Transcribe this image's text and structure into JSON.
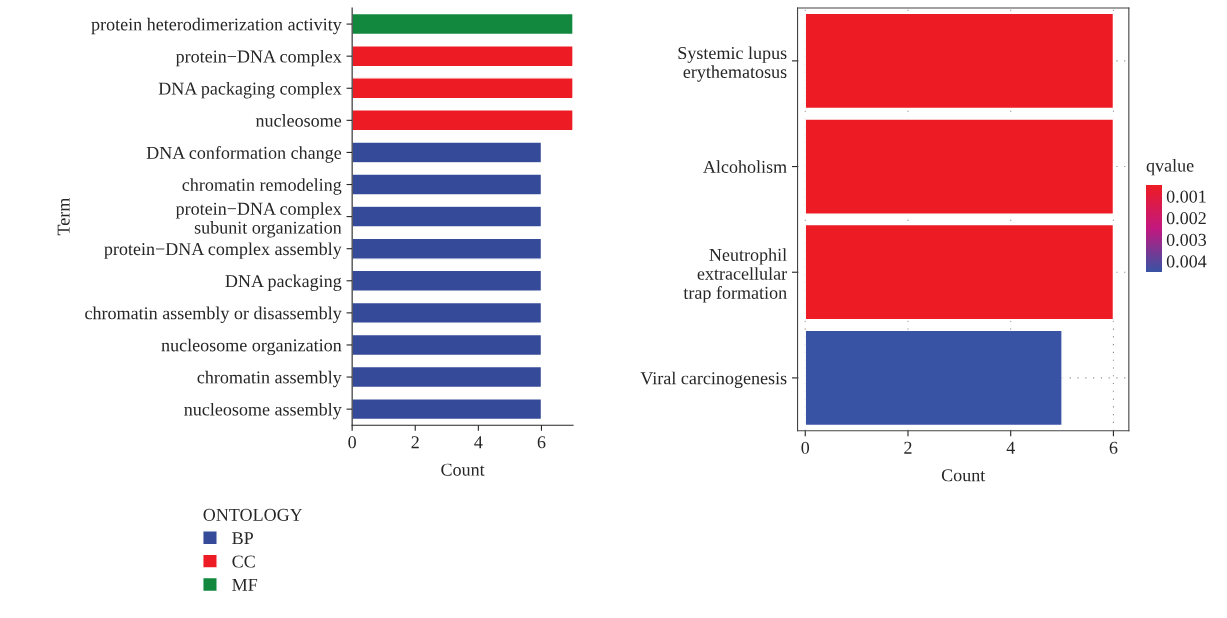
{
  "chart_data": [
    {
      "type": "bar",
      "orientation": "horizontal",
      "ylabel": "Term",
      "xlabel": "Count",
      "legend_title": "ONTOLOGY",
      "legend": "bottom",
      "categories": [
        "protein heterodimerization activity",
        "protein−DNA complex",
        "DNA packaging complex",
        "nucleosome",
        "DNA conformation change",
        "chromatin remodeling",
        "protein−DNA complex\nsubunit organization",
        "protein−DNA complex assembly",
        "DNA packaging",
        "chromatin assembly or disassembly",
        "nucleosome organization",
        "chromatin assembly",
        "nucleosome assembly"
      ],
      "series": [
        {
          "name": "BP",
          "color": "#354a98",
          "values": [
            null,
            null,
            null,
            null,
            6,
            6,
            6,
            6,
            6,
            6,
            6,
            6,
            6
          ]
        },
        {
          "name": "CC",
          "color": "#ed1c24",
          "values": [
            null,
            7,
            7,
            7,
            null,
            null,
            null,
            null,
            null,
            null,
            null,
            null,
            null
          ]
        },
        {
          "name": "MF",
          "color": "#11883e",
          "values": [
            7,
            null,
            null,
            null,
            null,
            null,
            null,
            null,
            null,
            null,
            null,
            null,
            null
          ]
        }
      ],
      "xlim": [
        0,
        7
      ],
      "xticks": [
        0,
        2,
        4,
        6
      ]
    },
    {
      "type": "bar",
      "orientation": "horizontal",
      "xlabel": "Count",
      "clabel": "qvalue",
      "grid": true,
      "categories": [
        "Systemic lupus\nerythematosus",
        "Alcoholism",
        "Neutrophil\nextracellular\ntrap formation",
        "Viral carcinogenesis"
      ],
      "values": [
        6,
        6,
        6,
        5
      ],
      "cvalues": [
        0.0005,
        0.0005,
        0.0005,
        0.0045
      ],
      "clim": [
        0.0005,
        0.0045
      ],
      "cticks": [
        0.001,
        0.002,
        0.003,
        0.004
      ],
      "xlim": [
        -0.15,
        6.3
      ],
      "xticks": [
        0,
        2,
        4,
        6
      ]
    }
  ]
}
